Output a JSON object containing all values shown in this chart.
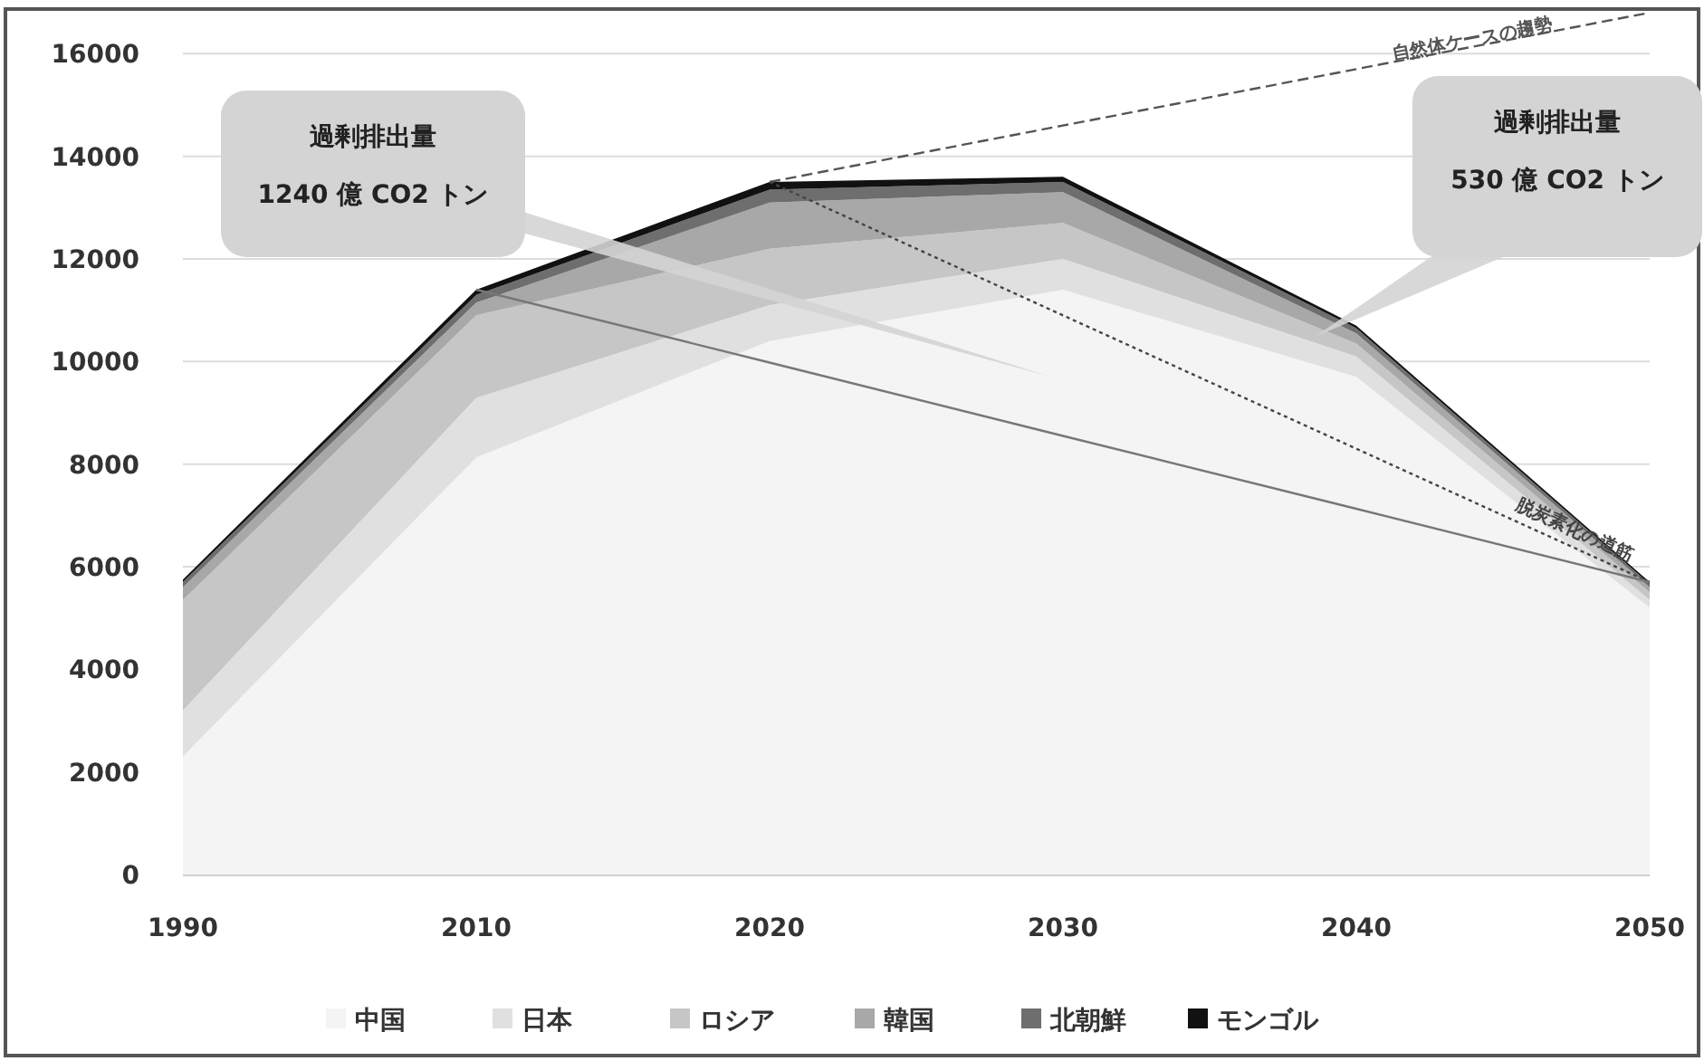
{
  "chart_data": {
    "type": "area",
    "stacked": true,
    "categories": [
      "1990",
      "2010",
      "2020",
      "2030",
      "2040",
      "2050"
    ],
    "ylim": [
      0,
      16800
    ],
    "yticks": [
      0,
      2000,
      4000,
      6000,
      8000,
      10000,
      12000,
      14000,
      16000
    ],
    "grid": "y",
    "legend": "bottom",
    "series": [
      {
        "name": "中国",
        "color": "#f4f4f4",
        "values": [
          2300,
          8130,
          10400,
          11400,
          9700,
          5200
        ]
      },
      {
        "name": "日本",
        "color": "#e0e0e0",
        "values": [
          900,
          1160,
          700,
          600,
          400,
          150
        ]
      },
      {
        "name": "ロシア",
        "color": "#c6c6c6",
        "values": [
          2150,
          1610,
          1100,
          700,
          250,
          150
        ]
      },
      {
        "name": "韓国",
        "color": "#a8a8a8",
        "values": [
          250,
          250,
          900,
          600,
          200,
          100
        ]
      },
      {
        "name": "北朝鮮",
        "color": "#6e6e6e",
        "values": [
          100,
          150,
          250,
          200,
          100,
          60
        ]
      },
      {
        "name": "モンゴル",
        "color": "#111111",
        "values": [
          50,
          100,
          150,
          100,
          50,
          40
        ]
      },
      {
        "name": "自然体ケースの趨勢",
        "type": "line",
        "color": "#555555",
        "line_style": "dashed",
        "values": [
          null,
          null,
          13500,
          14600,
          15700,
          16800
        ]
      },
      {
        "name": "脱炭素化の道筋",
        "type": "line",
        "color": "#444444",
        "line_style": "dotted",
        "values": [
          null,
          null,
          13500,
          10900,
          8300,
          5700
        ]
      },
      {
        "type": "line",
        "color": "#777777",
        "line_style": "solid",
        "values": [
          null,
          11400,
          9980,
          8550,
          7130,
          5700
        ]
      }
    ],
    "annotations": [
      "過剰排出量\n1240 億 CO2 トン",
      "過剰排出量\n530 億 CO2 トン"
    ]
  }
}
